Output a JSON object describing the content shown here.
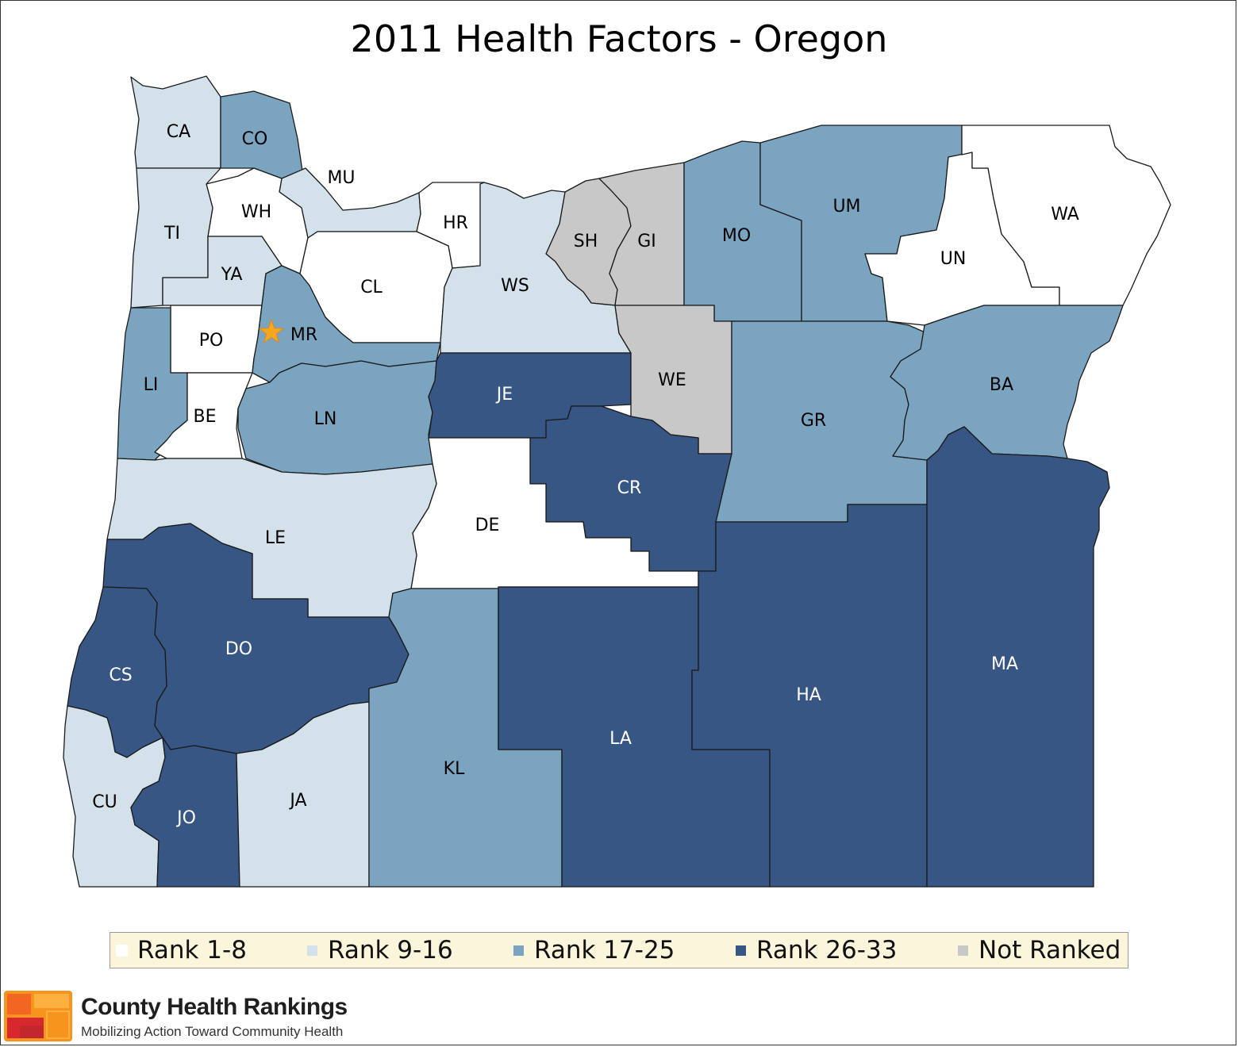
{
  "title": "2011 Health Factors - Oregon",
  "colors": {
    "rank_1_8": "#ffffff",
    "rank_9_16": "#d3e1ea",
    "rank_17_25": "#7ba4c0",
    "rank_26_33": "#375684",
    "not_ranked": "#c8c8c8",
    "state_capital_star": "#f5a623"
  },
  "legend": [
    {
      "label": "Rank 1-8",
      "color": "#ffffff"
    },
    {
      "label": "Rank 9-16",
      "color": "#d3e1ea"
    },
    {
      "label": "Rank 17-25",
      "color": "#7ba4c0"
    },
    {
      "label": "Rank 26-33",
      "color": "#375684"
    },
    {
      "label": "Not Ranked",
      "color": "#c8c8c8"
    }
  ],
  "counties": [
    {
      "code": "CA",
      "rank_group": "Rank 9-16"
    },
    {
      "code": "CO",
      "rank_group": "Rank 17-25"
    },
    {
      "code": "MU",
      "rank_group": "Rank 9-16"
    },
    {
      "code": "WH",
      "rank_group": "Rank 1-8"
    },
    {
      "code": "TI",
      "rank_group": "Rank 9-16"
    },
    {
      "code": "YA",
      "rank_group": "Rank 9-16"
    },
    {
      "code": "HR",
      "rank_group": "Rank 1-8"
    },
    {
      "code": "CL",
      "rank_group": "Rank 1-8"
    },
    {
      "code": "PO",
      "rank_group": "Rank 1-8"
    },
    {
      "code": "MR",
      "rank_group": "Rank 17-25"
    },
    {
      "code": "LI",
      "rank_group": "Rank 17-25"
    },
    {
      "code": "BE",
      "rank_group": "Rank 1-8"
    },
    {
      "code": "LN",
      "rank_group": "Rank 17-25"
    },
    {
      "code": "SH",
      "rank_group": "Not Ranked"
    },
    {
      "code": "GI",
      "rank_group": "Not Ranked"
    },
    {
      "code": "WS",
      "rank_group": "Rank 9-16"
    },
    {
      "code": "MO",
      "rank_group": "Rank 17-25"
    },
    {
      "code": "UM",
      "rank_group": "Rank 17-25"
    },
    {
      "code": "UN",
      "rank_group": "Rank 1-8"
    },
    {
      "code": "WA",
      "rank_group": "Rank 1-8"
    },
    {
      "code": "JE",
      "rank_group": "Rank 26-33"
    },
    {
      "code": "WE",
      "rank_group": "Not Ranked"
    },
    {
      "code": "GR",
      "rank_group": "Rank 17-25"
    },
    {
      "code": "BA",
      "rank_group": "Rank 17-25"
    },
    {
      "code": "CR",
      "rank_group": "Rank 26-33"
    },
    {
      "code": "DE",
      "rank_group": "Rank 1-8"
    },
    {
      "code": "LE",
      "rank_group": "Rank 9-16"
    },
    {
      "code": "DO",
      "rank_group": "Rank 26-33"
    },
    {
      "code": "CS",
      "rank_group": "Rank 26-33"
    },
    {
      "code": "CU",
      "rank_group": "Rank 9-16"
    },
    {
      "code": "JO",
      "rank_group": "Rank 26-33"
    },
    {
      "code": "JA",
      "rank_group": "Rank 9-16"
    },
    {
      "code": "KL",
      "rank_group": "Rank 17-25"
    },
    {
      "code": "LA",
      "rank_group": "Rank 26-33"
    },
    {
      "code": "HA",
      "rank_group": "Rank 26-33"
    },
    {
      "code": "MA",
      "rank_group": "Rank 26-33"
    }
  ],
  "state_capital_county": "MR",
  "branding": {
    "name": "County Health Rankings",
    "tagline": "Mobilizing Action Toward Community Health"
  }
}
